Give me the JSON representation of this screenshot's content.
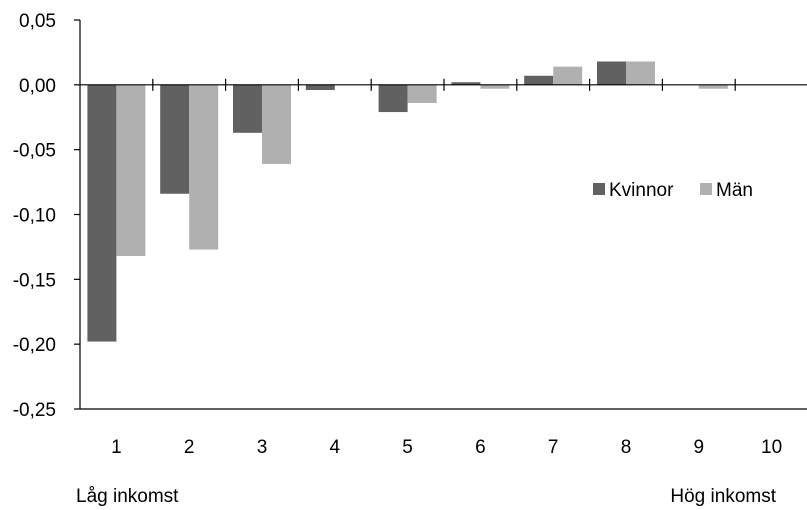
{
  "chart_data": {
    "type": "bar",
    "categories": [
      "1",
      "2",
      "3",
      "4",
      "5",
      "6",
      "7",
      "8",
      "9",
      "10"
    ],
    "series": [
      {
        "name": "Kvinnor",
        "color": "#616161",
        "values": [
          -0.198,
          -0.084,
          -0.037,
          -0.004,
          -0.021,
          0.002,
          0.007,
          0.018,
          0.0,
          0.0
        ]
      },
      {
        "name": "Män",
        "color": "#b0b0b0",
        "values": [
          -0.132,
          -0.127,
          -0.061,
          0.0,
          -0.014,
          -0.003,
          0.014,
          0.018,
          -0.003,
          0.0
        ]
      }
    ],
    "y_ticks": [
      "0,05",
      "0,00",
      "-0,05",
      "-0,10",
      "-0,15",
      "-0,20",
      "-0,25"
    ],
    "y_tick_values": [
      0.05,
      0.0,
      -0.05,
      -0.1,
      -0.15,
      -0.2,
      -0.25
    ],
    "ylim": [
      -0.25,
      0.05
    ],
    "x_note_left": "Låg inkomst",
    "x_note_right": "Hög inkomst",
    "legend_position": "right",
    "grid": false
  }
}
